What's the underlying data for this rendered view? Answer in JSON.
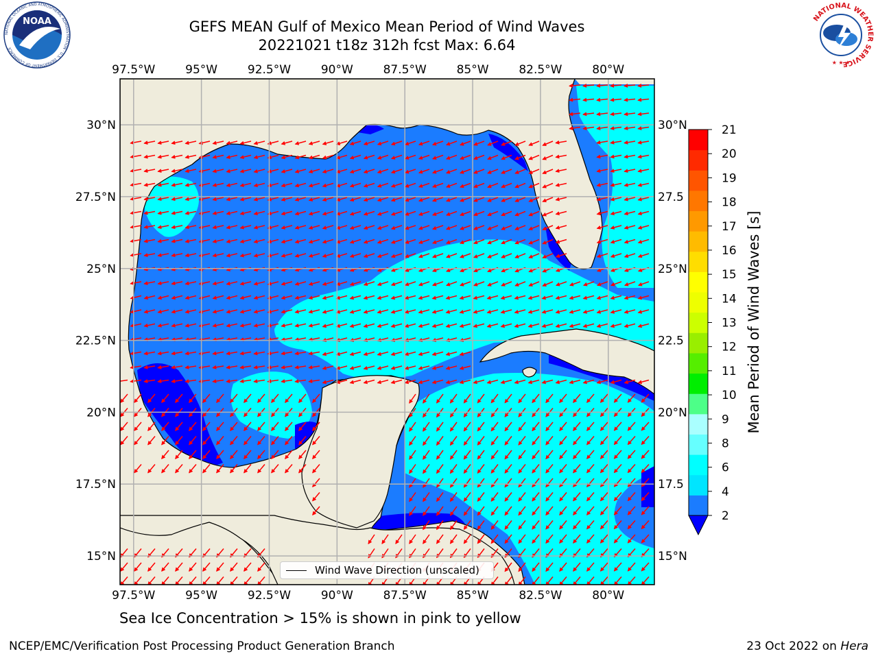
{
  "title_line1": "GEFS MEAN Gulf of Mexico Mean Period of Wind Waves",
  "title_line2": "20221021 t18z 312h fcst   Max: 6.64",
  "logo_left_name": "noaa-logo",
  "logo_left_text": "NOAA",
  "logo_left_ring_text": "NATIONAL OCEANIC AND ATMOSPHERIC ADMINISTRATION · U.S. DEPARTMENT OF COMMERCE",
  "logo_right_name": "nws-logo",
  "logo_right_ring_text": "NATIONAL WEATHER SERVICE",
  "map": {
    "lon_ticks_top": [
      "97.5°W",
      "95°W",
      "92.5°W",
      "90°W",
      "87.5°W",
      "85°W",
      "82.5°W",
      "80°W"
    ],
    "lon_ticks_bottom": [
      "97.5°W",
      "95°W",
      "92.5°W",
      "90°W",
      "87.5°W",
      "85°W",
      "82.5°W",
      "80°W"
    ],
    "lat_ticks_left": [
      "30°N",
      "27.5°N",
      "25°N",
      "22.5°N",
      "20°N",
      "17.5°N",
      "15°N"
    ],
    "lat_ticks_right": [
      "30°N",
      "27.5",
      "25°N",
      "22.5",
      "20°N",
      "17.5",
      "15°N"
    ],
    "lon_values": [
      -97.5,
      -95,
      -92.5,
      -90,
      -87.5,
      -85,
      -82.5,
      -80
    ],
    "lat_values": [
      30,
      27.5,
      25,
      22.5,
      20,
      17.5,
      15
    ],
    "extent": {
      "lon_min": -98,
      "lon_max": -78.3,
      "lat_min": 14,
      "lat_max": 31.6
    },
    "land_color": "#efecdc",
    "legend_label": "Wind Wave Direction (unscaled)",
    "arrow_color": "#ff0000"
  },
  "colorbar": {
    "label": "Mean Period of Wind Waves [s]",
    "tick_labels": [
      "21",
      "20",
      "19",
      "18",
      "17",
      "16",
      "15",
      "14",
      "13",
      "12",
      "11",
      "10",
      "9",
      "8",
      "6",
      "4",
      "2"
    ],
    "colors_bottom_to_top": [
      "#1b7cff",
      "#00e5ff",
      "#00ffff",
      "#66ffff",
      "#aaffff",
      "#4dff88",
      "#00ee00",
      "#55ee00",
      "#99ee00",
      "#ccff00",
      "#eeff00",
      "#ffff00",
      "#ffdd00",
      "#ffbb00",
      "#ff9900",
      "#ff7700",
      "#ff5500",
      "#ff2a00",
      "#ff0000"
    ],
    "under_color": "#0000ff"
  },
  "note": "Sea Ice Concentration > 15% is shown in pink to yellow",
  "footer_left": "NCEP/EMC/Verification Post Processing Product Generation Branch",
  "footer_right_prefix": "23 Oct 2022 on",
  "footer_right_host": "Hera"
}
